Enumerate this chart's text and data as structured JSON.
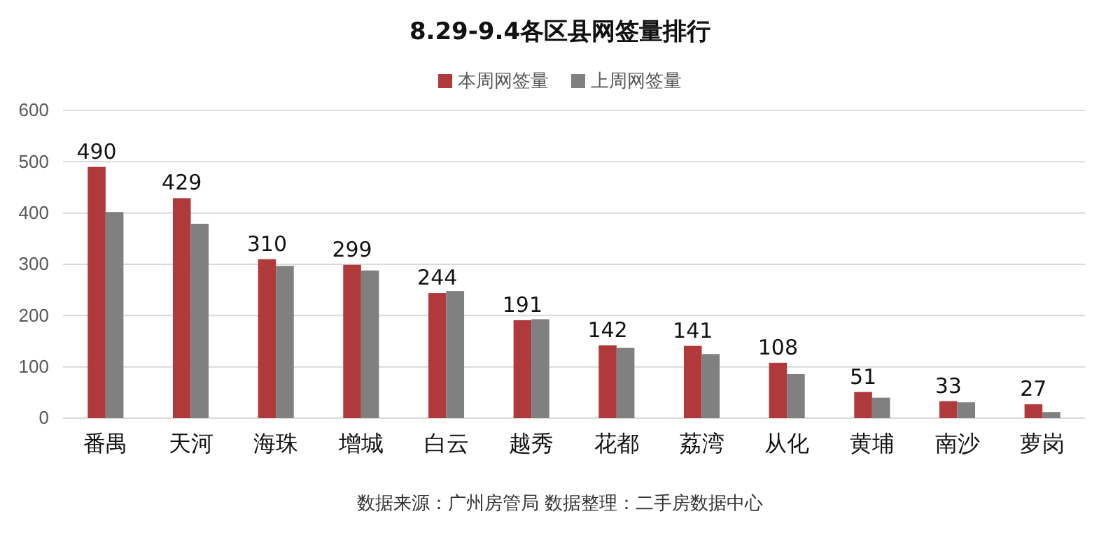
{
  "chart_data": {
    "type": "bar",
    "title": "8.29-9.4各区县网签量排行",
    "categories": [
      "番禺",
      "天河",
      "海珠",
      "增城",
      "白云",
      "越秀",
      "花都",
      "荔湾",
      "从化",
      "黄埔",
      "南沙",
      "萝岗"
    ],
    "series": [
      {
        "name": "本周网签量",
        "color": "#b0393b",
        "values": [
          490,
          429,
          310,
          299,
          244,
          191,
          142,
          141,
          108,
          51,
          33,
          27
        ],
        "value_labels": [
          "490",
          "429",
          "310",
          "299",
          "244",
          "191",
          "142",
          "141",
          "108",
          "51",
          "33",
          "27"
        ]
      },
      {
        "name": "上周网签量",
        "color": "#808080",
        "values": [
          402,
          379,
          297,
          288,
          248,
          193,
          137,
          125,
          86,
          40,
          31,
          12
        ]
      }
    ],
    "ylim": [
      0,
      600
    ],
    "yticks": [
      0,
      100,
      200,
      300,
      400,
      500,
      600
    ],
    "grid": "y",
    "legend": "top",
    "annotations": [
      "数据来源：广州房管局  数据整理：二手房数据中心"
    ]
  }
}
